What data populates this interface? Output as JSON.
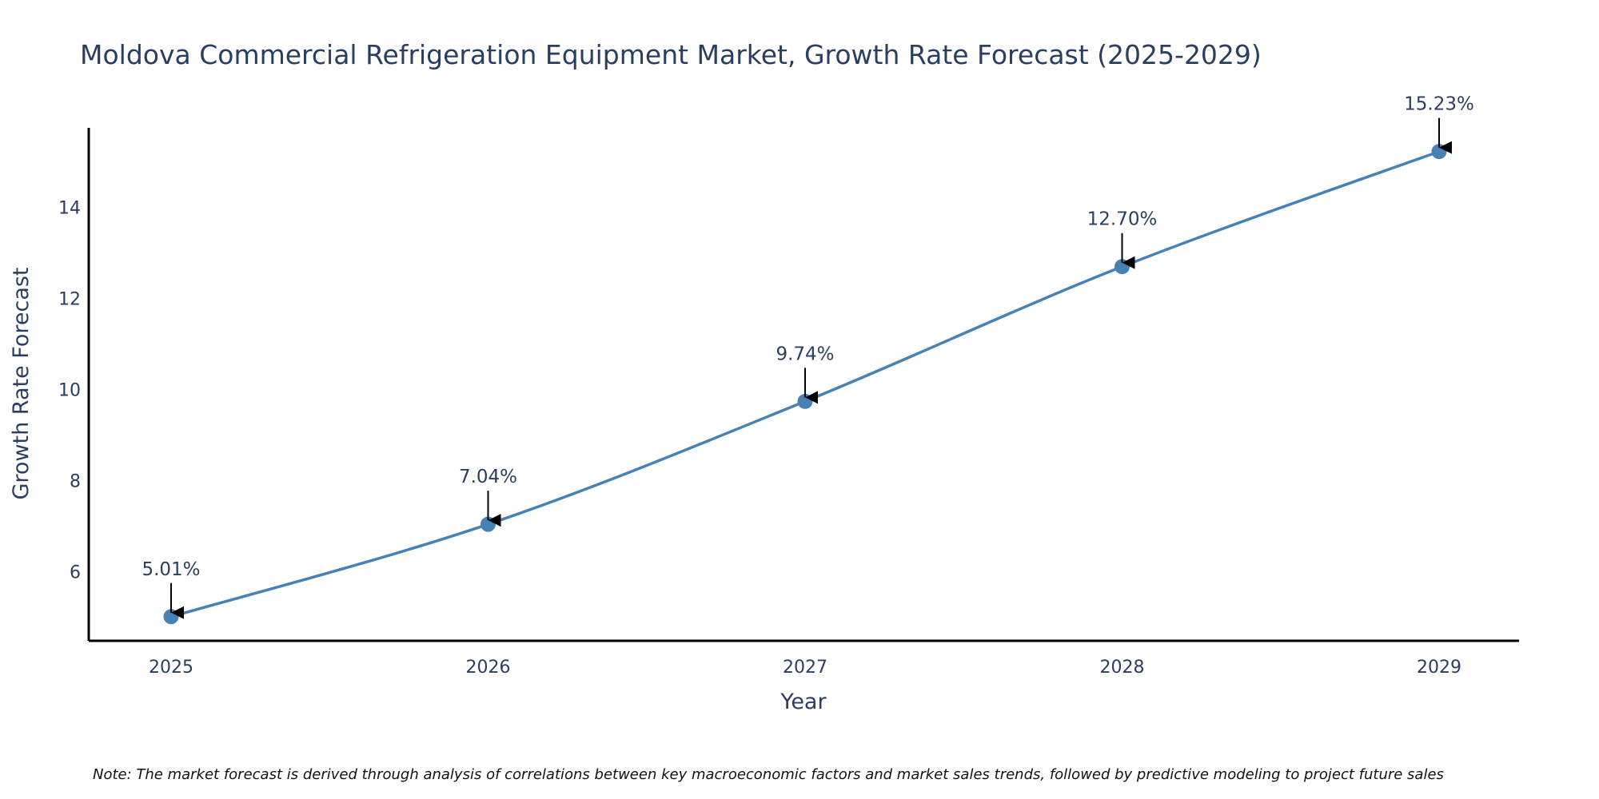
{
  "chart_data": {
    "type": "line",
    "title": "Moldova Commercial Refrigeration Equipment Market, Growth Rate Forecast (2025-2029)",
    "xlabel": "Year",
    "ylabel": "Growth Rate Forecast",
    "categories": [
      "2025",
      "2026",
      "2027",
      "2028",
      "2029"
    ],
    "values": [
      5.01,
      7.04,
      9.74,
      12.7,
      15.23
    ],
    "data_labels": [
      "5.01%",
      "7.04%",
      "9.74%",
      "12.70%",
      "15.23%"
    ],
    "y_ticks": [
      6,
      8,
      10,
      12,
      14
    ],
    "ylim": [
      4.48,
      15.75
    ],
    "grid": false,
    "legend": "none",
    "series_color": "#4682b4",
    "note": "Note: The market forecast is derived through analysis of correlations between key macroeconomic factors and market sales trends, followed by predictive modeling to project future sales"
  }
}
